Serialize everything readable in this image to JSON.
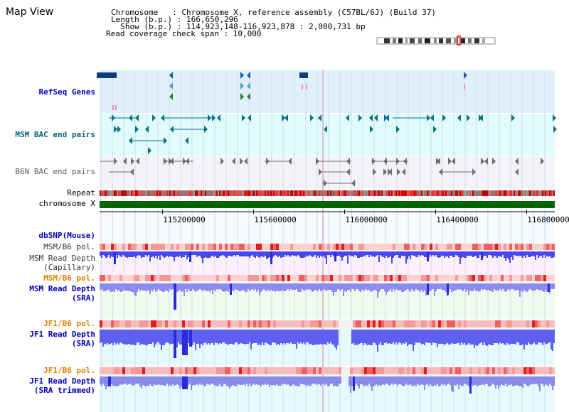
{
  "header": {
    "title": "Map View",
    "chromosome_line": "Chromosome   : Chromosome X, reference assembly (C57BL/6J) (Build 37)",
    "length_line": "Length (b.p.) : 166,650,296",
    "show_line": "  Show (b.p.) : 114,923,148-116,923,878 : 2,000,731 bp",
    "coverage_line": "Read coverage check span : 10,000"
  },
  "tracks": {
    "refseq": "RefSeq Genes",
    "msm_bac": "MSM BAC end pairs",
    "b6n_bac": "B6N BAC end pairs",
    "repeat": "Repeat",
    "chromosome": "chromosome X",
    "dbsnp": "dbSNP(Mouse)",
    "msm_b6_pol_1": "MSM/B6 pol.",
    "msm_depth_cap_1": "MSM Read Depth",
    "msm_depth_cap_2": "(Capillary)",
    "msm_b6_pol_2": "MSM/B6 pol.",
    "msm_depth_sra_1": "MSM Read Depth",
    "msm_depth_sra_2": "(SRA)",
    "jf1_b6_pol_1": "JF1/B6 pol.",
    "jf1_depth_1": "JF1 Read Depth",
    "jf1_depth_2": "(SRA)",
    "jf1_b6_pol_2": "JF1/B6 pol.",
    "jf1_trim_1": "JF1 Read Depth",
    "jf1_trim_2": "(SRA trimmed)"
  },
  "axis": {
    "ticks": [
      "115200000",
      "115600000",
      "116000000",
      "116400000",
      "116800000"
    ],
    "tick_values": [
      115200000,
      115600000,
      116000000,
      116400000,
      116800000
    ],
    "view_start": 114923148,
    "view_end": 116923878
  },
  "colors": {
    "refseq_label": "#0000cc",
    "msm_label": "#006680",
    "b6n_label": "#606060",
    "orange_label": "#e08000",
    "blue_label": "#0000bb",
    "refseq_bg": "#dff0fb",
    "msm_bg": "#e0fbfb",
    "b6n_bg": "#f3f3f7",
    "chromosome_bar": "#006600",
    "depth_blue": "#4848f0",
    "depth_light": "#8c8cf0"
  }
}
